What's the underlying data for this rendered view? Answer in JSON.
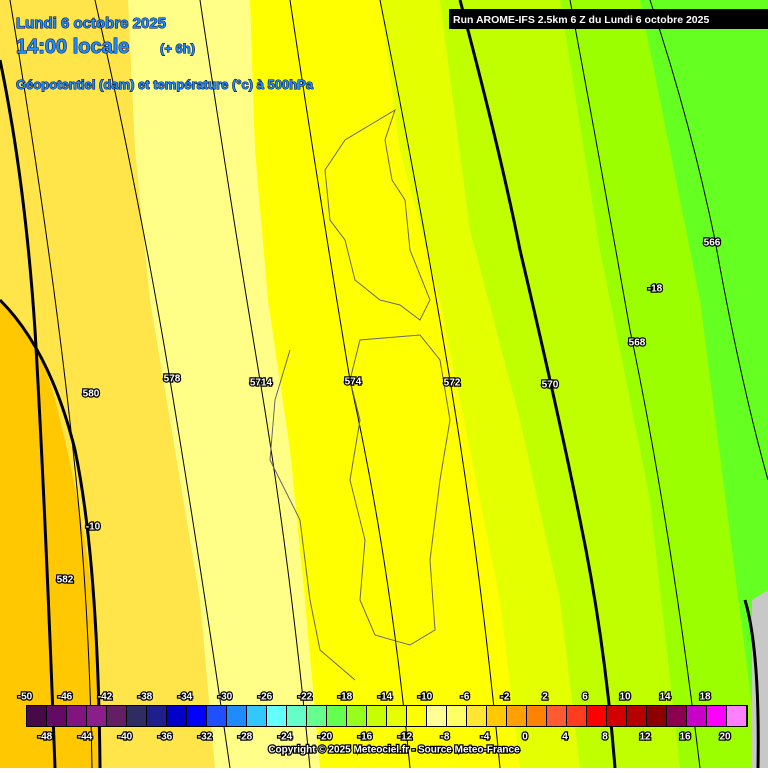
{
  "header": {
    "date": "Lundi 6 octobre 2025",
    "time": "14:00 locale",
    "lead": "(+ 6h)",
    "field": "Géopotentiel (dam) et température (°c) à 500hPa",
    "run": "Run AROME-IFS 2.5km 6 Z du Lundi 6 octobre 2025"
  },
  "contour_labels": [
    "566",
    "-18",
    "568",
    "570",
    "572",
    "574",
    "5714",
    "578",
    "580",
    "-10",
    "582"
  ],
  "colorbar": {
    "top_labels": [
      -50,
      -46,
      -42,
      -38,
      -34,
      -30,
      -26,
      -22,
      -18,
      -14,
      -10,
      -6,
      -2,
      2,
      6,
      10,
      14,
      18
    ],
    "bottom_labels": [
      -48,
      -44,
      -40,
      -36,
      -32,
      -28,
      -24,
      -20,
      -16,
      -12,
      -8,
      -4,
      0,
      4,
      8,
      12,
      16,
      20
    ],
    "colors": [
      "#460a46",
      "#640a64",
      "#821482",
      "#8c1e8c",
      "#641e64",
      "#2d2d64",
      "#1e1e8c",
      "#0000c8",
      "#0000ff",
      "#1e50ff",
      "#1e8cff",
      "#32c8ff",
      "#64ffff",
      "#64ffc8",
      "#64ff8c",
      "#64ff50",
      "#96ff1e",
      "#c8ff00",
      "#e6ff00",
      "#ffff00",
      "#ffff96",
      "#ffff64",
      "#ffe632",
      "#ffc800",
      "#ffa000",
      "#ff8200",
      "#ff5a32",
      "#ff3c1e",
      "#ff0000",
      "#d20000",
      "#b40000",
      "#8c0000",
      "#8c0050",
      "#c800c8",
      "#ff00ff",
      "#ff80ff"
    ]
  },
  "copyright": "Copyright © 2025 Meteociel.fr - Source Meteo-France"
}
